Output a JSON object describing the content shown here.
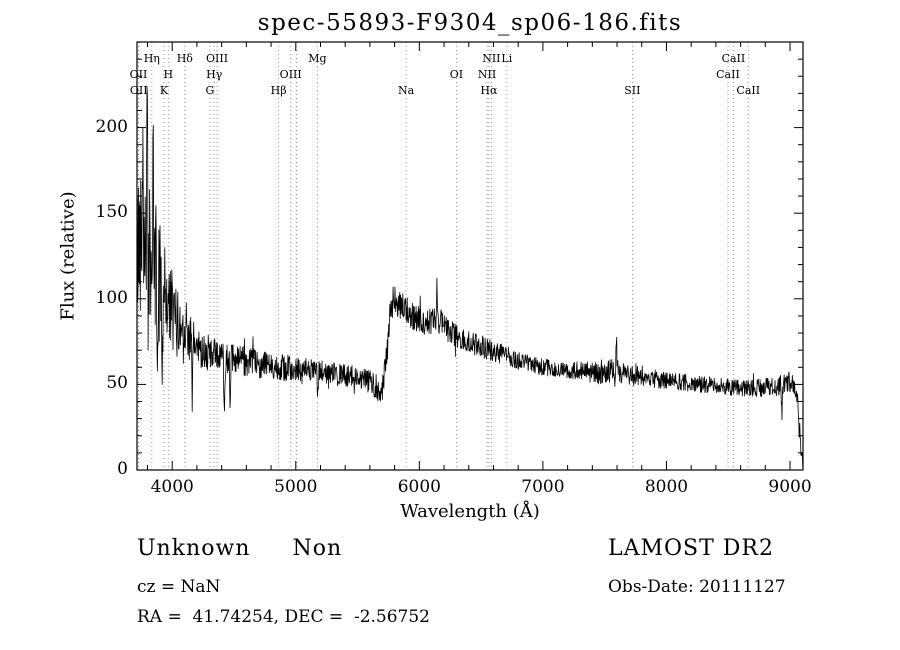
{
  "chart_data": {
    "type": "line",
    "title": "spec-55893-F9304_sp06-186.fits",
    "xlabel": "Wavelength (Å)",
    "ylabel": "Flux (relative)",
    "xlim": [
      3715,
      9105
    ],
    "ylim": [
      0,
      250
    ],
    "xticks": [
      4000,
      5000,
      6000,
      7000,
      8000,
      9000
    ],
    "yticks": [
      0,
      50,
      100,
      150,
      200
    ],
    "x_minor_step": 200,
    "y_minor_step": 10,
    "grid": false,
    "legend": "none",
    "colors": {
      "spectrum": "#000000",
      "marker_line": "#8a8a8a",
      "frame": "#000000"
    },
    "series": [
      {
        "name": "flux",
        "sampling_step_angstrom": 3,
        "noise_seed": 42,
        "flux_envelope": [
          [
            3715,
            125
          ],
          [
            3740,
            138
          ],
          [
            3770,
            142
          ],
          [
            3800,
            132
          ],
          [
            3830,
            122
          ],
          [
            3860,
            118
          ],
          [
            3900,
            112
          ],
          [
            3940,
            104
          ],
          [
            3980,
            96
          ],
          [
            4020,
            88
          ],
          [
            4060,
            84
          ],
          [
            4100,
            86
          ],
          [
            4140,
            78
          ],
          [
            4180,
            73
          ],
          [
            4240,
            70
          ],
          [
            4300,
            68
          ],
          [
            4360,
            67
          ],
          [
            4420,
            66
          ],
          [
            4500,
            64
          ],
          [
            4600,
            63
          ],
          [
            4700,
            62
          ],
          [
            4800,
            61
          ],
          [
            4900,
            60
          ],
          [
            5000,
            59
          ],
          [
            5100,
            58
          ],
          [
            5200,
            57
          ],
          [
            5300,
            56
          ],
          [
            5400,
            55
          ],
          [
            5500,
            54
          ],
          [
            5600,
            52
          ],
          [
            5660,
            48
          ],
          [
            5700,
            46
          ],
          [
            5730,
            62
          ],
          [
            5760,
            88
          ],
          [
            5790,
            99
          ],
          [
            5830,
            97
          ],
          [
            5880,
            94
          ],
          [
            5930,
            91
          ],
          [
            5990,
            88
          ],
          [
            6060,
            86
          ],
          [
            6120,
            88
          ],
          [
            6180,
            86
          ],
          [
            6240,
            81
          ],
          [
            6300,
            78
          ],
          [
            6380,
            75
          ],
          [
            6460,
            73
          ],
          [
            6540,
            71
          ],
          [
            6620,
            69
          ],
          [
            6700,
            67
          ],
          [
            6800,
            64
          ],
          [
            6900,
            62
          ],
          [
            7000,
            60
          ],
          [
            7100,
            59
          ],
          [
            7250,
            58
          ],
          [
            7400,
            57
          ],
          [
            7520,
            56
          ],
          [
            7570,
            60
          ],
          [
            7620,
            57
          ],
          [
            7720,
            55
          ],
          [
            7850,
            53
          ],
          [
            8000,
            52
          ],
          [
            8150,
            51
          ],
          [
            8300,
            50
          ],
          [
            8450,
            49
          ],
          [
            8600,
            48
          ],
          [
            8750,
            48
          ],
          [
            8870,
            49
          ],
          [
            8960,
            50
          ],
          [
            9020,
            52
          ],
          [
            9060,
            40
          ],
          [
            9085,
            15
          ],
          [
            9105,
            1
          ]
        ],
        "noise_amplitude": [
          [
            3715,
            46
          ],
          [
            3800,
            44
          ],
          [
            3900,
            38
          ],
          [
            3960,
            30
          ],
          [
            4020,
            22
          ],
          [
            4100,
            16
          ],
          [
            4200,
            12
          ],
          [
            4350,
            10
          ],
          [
            4500,
            9
          ],
          [
            4800,
            8
          ],
          [
            5200,
            7
          ],
          [
            5600,
            7
          ],
          [
            5750,
            9
          ],
          [
            5900,
            8
          ],
          [
            6100,
            8
          ],
          [
            6300,
            7
          ],
          [
            6600,
            6
          ],
          [
            6900,
            5
          ],
          [
            7200,
            5
          ],
          [
            7550,
            7
          ],
          [
            7800,
            5
          ],
          [
            8200,
            5
          ],
          [
            8600,
            5
          ],
          [
            8900,
            6
          ],
          [
            9105,
            7
          ]
        ],
        "spikes": [
          [
            3762,
            62
          ],
          [
            3797,
            55
          ],
          [
            3845,
            48
          ],
          [
            3882,
            -52
          ],
          [
            3920,
            -40
          ],
          [
            4162,
            -36
          ],
          [
            4422,
            -33
          ],
          [
            4470,
            -24
          ],
          [
            5178,
            -15
          ],
          [
            6142,
            21
          ],
          [
            7596,
            16
          ],
          [
            8934,
            -15
          ]
        ]
      }
    ],
    "line_markers": [
      {
        "label": "OII",
        "wavelength": 3727,
        "row": 2
      },
      {
        "label": "OII",
        "wavelength": 3729,
        "row": 3
      },
      {
        "label": "Hη",
        "wavelength": 3835,
        "row": 1
      },
      {
        "label": "K",
        "wavelength": 3933,
        "row": 3
      },
      {
        "label": "H",
        "wavelength": 3968,
        "row": 2
      },
      {
        "label": "Hδ",
        "wavelength": 4102,
        "row": 1
      },
      {
        "label": "G",
        "wavelength": 4305,
        "row": 3
      },
      {
        "label": "Hγ",
        "wavelength": 4340,
        "row": 2
      },
      {
        "label": "OIII",
        "wavelength": 4363,
        "row": 1
      },
      {
        "label": "Hβ",
        "wavelength": 4861,
        "row": 3
      },
      {
        "label": "OIII",
        "wavelength": 4959,
        "row": 2
      },
      {
        "label": "Mg",
        "wavelength": 5175,
        "row": 1
      },
      {
        "label": "Na",
        "wavelength": 5893,
        "row": 3
      },
      {
        "label": "OI",
        "wavelength": 6300,
        "row": 2
      },
      {
        "label": "NII",
        "wavelength": 6548,
        "row": 2
      },
      {
        "label": "Hα",
        "wavelength": 6563,
        "row": 3
      },
      {
        "label": "NII",
        "wavelength": 6583,
        "row": 1
      },
      {
        "label": "Li",
        "wavelength": 6708,
        "row": 1
      },
      {
        "label": "SII",
        "wavelength": 7724,
        "row": 3
      },
      {
        "label": "CaII",
        "wavelength": 8498,
        "row": 2
      },
      {
        "label": "CaII",
        "wavelength": 8542,
        "row": 1
      },
      {
        "label": "CaII",
        "wavelength": 8662,
        "row": 3
      }
    ],
    "extra_marker_wavelengths": [
      5007
    ]
  },
  "annotations": {
    "class_label": "Unknown",
    "subclass_label": "Non",
    "cz": "cz = NaN",
    "survey": "LAMOST DR2",
    "obs_date": "Obs-Date: 20111127",
    "radec": "RA =  41.74254, DEC =  -2.56752"
  }
}
